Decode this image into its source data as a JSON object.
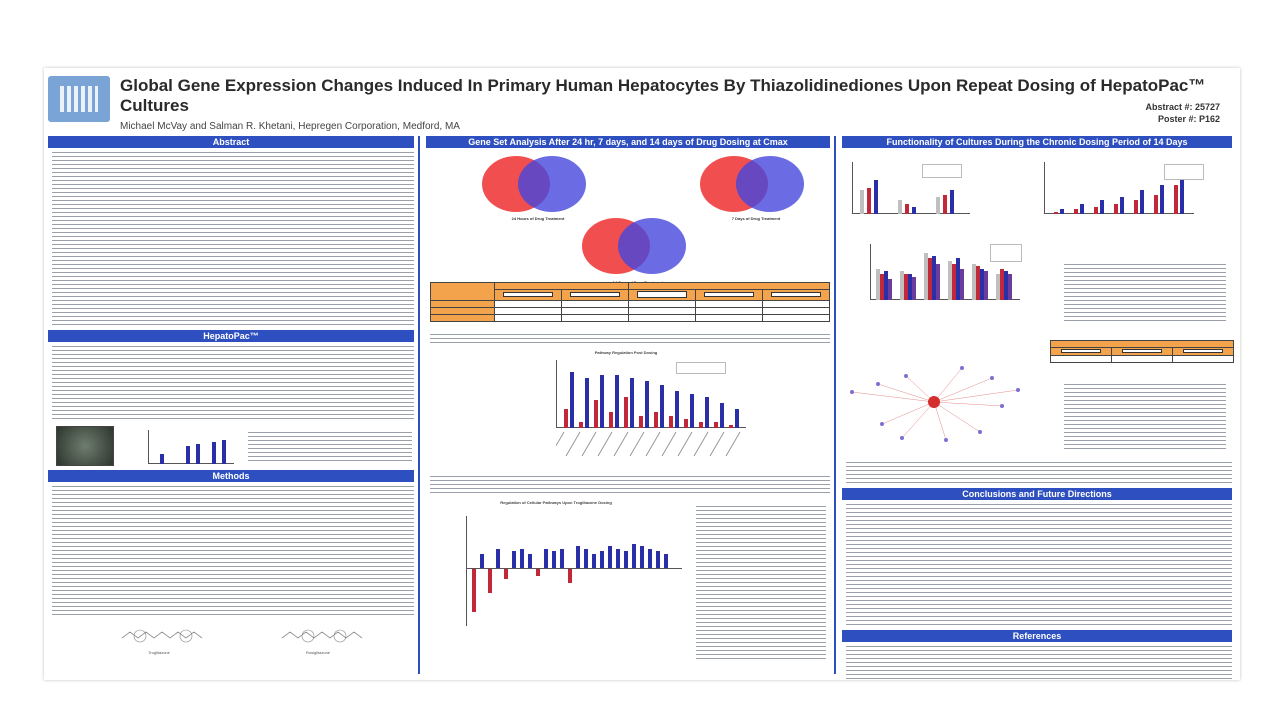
{
  "header": {
    "title": "Global Gene Expression Changes Induced In Primary Human Hepatocytes By Thiazolidinediones Upon Repeat Dosing of HepatoPac™ Cultures",
    "authors": "Michael McVay and Salman R. Khetani, Hepregen Corporation, Medford, MA",
    "abstract_no": "Abstract #: 25727",
    "poster_no": "Poster #: P162"
  },
  "col1": {
    "abstract_heading": "Abstract",
    "hepatopac_heading": "HepatoPac™",
    "methods_heading": "Methods",
    "mol1": "Troglitazone",
    "mol2": "Rosiglitazone"
  },
  "col2": {
    "heading": "Gene Set Analysis After 24 hr, 7 days, and 14 days of Drug Dosing at Cmax",
    "venn1": "24 Hours of Drug Treatment",
    "venn2": "7 Days of Drug Treatment",
    "venn3": "14 Days of Drug Treatment",
    "bar_title": "Pathway Regulation Post Dosing",
    "neg_title": "Regulation of Cellular Pathways Upon Troglitazone Dosing"
  },
  "col3": {
    "heading": "Functionality of Cultures During the Chronic Dosing Period of 14 Days",
    "conclusions_heading": "Conclusions and Future Directions",
    "references_heading": "References"
  },
  "colors": {
    "accent": "#2e4fbf",
    "troglitazone": "#c1283a",
    "rosiglitazone": "#2a2fa8",
    "table_header": "#f3a34b"
  }
}
